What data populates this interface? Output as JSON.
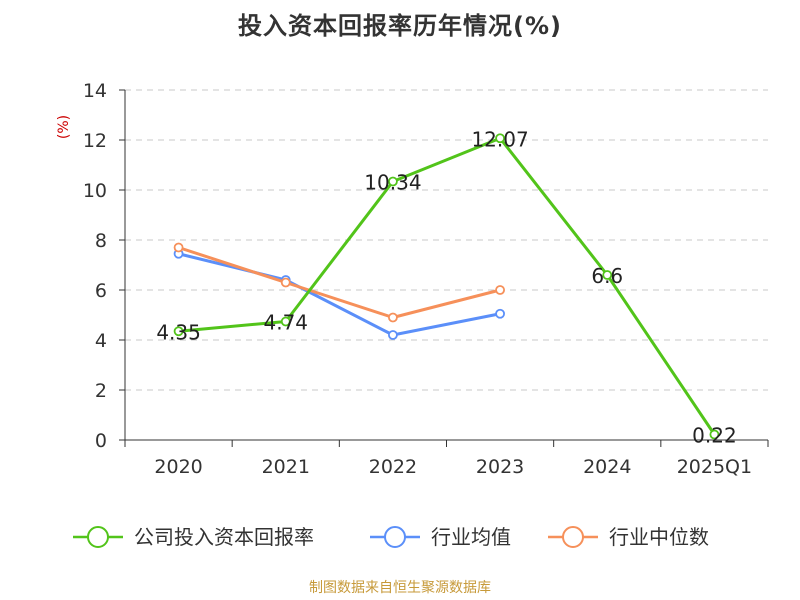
{
  "source": "制图数据来自恒生聚源数据库",
  "chart_data": {
    "type": "line",
    "title": "投入资本回报率历年情况(%)",
    "ylabel": "(%)",
    "xlabel": "",
    "categories": [
      "2020",
      "2021",
      "2022",
      "2023",
      "2024",
      "2025Q1"
    ],
    "ylim": [
      0,
      14
    ],
    "yticks": [
      0,
      2,
      4,
      6,
      8,
      10,
      12,
      14
    ],
    "grid": true,
    "legend_position": "bottom",
    "series": [
      {
        "name": "公司投入资本回报率",
        "color": "#52c41a",
        "values": [
          4.35,
          4.74,
          10.34,
          12.07,
          6.6,
          0.22
        ],
        "labels": [
          "4.35",
          "4.74",
          "10.34",
          "12.07",
          "6.6",
          "0.22"
        ]
      },
      {
        "name": "行业均值",
        "color": "#5b8ff9",
        "values": [
          7.45,
          6.4,
          4.2,
          5.05,
          null,
          null
        ]
      },
      {
        "name": "行业中位数",
        "color": "#f6905a",
        "values": [
          7.7,
          6.3,
          4.9,
          6.0,
          null,
          null
        ]
      }
    ]
  }
}
